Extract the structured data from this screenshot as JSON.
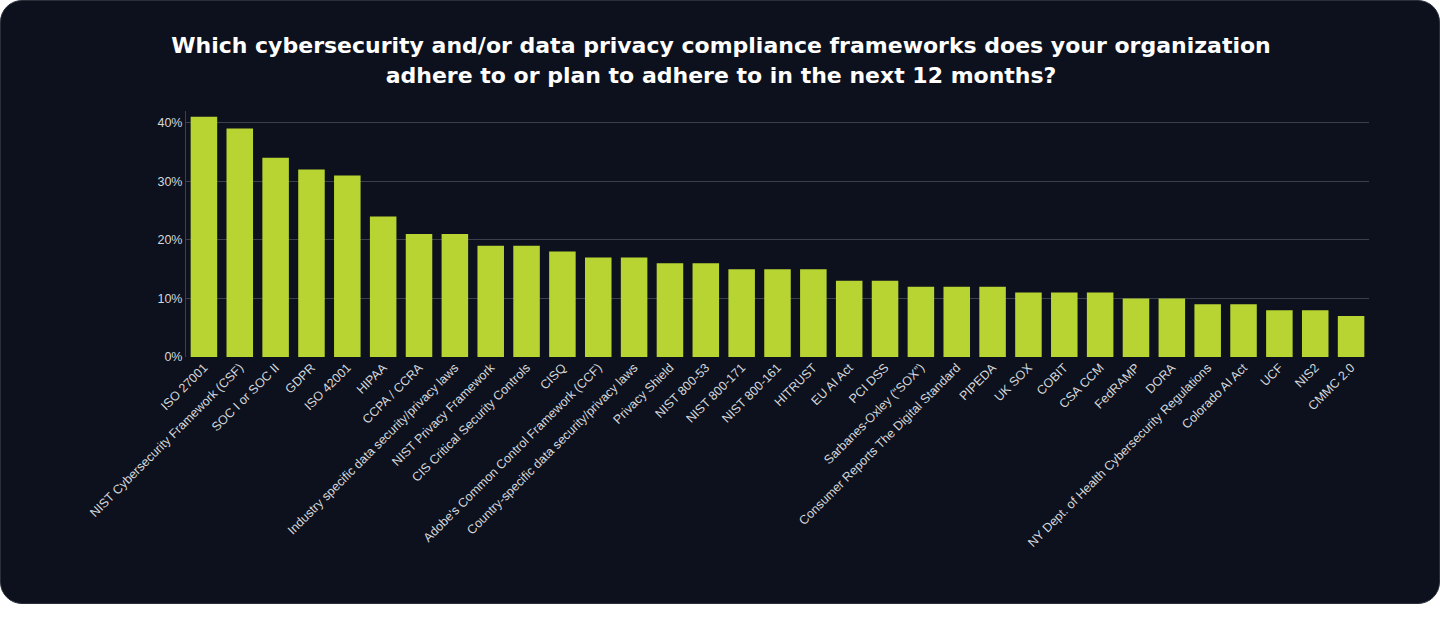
{
  "chart_data": {
    "type": "bar",
    "title": "Which cybersecurity and/or data privacy compliance frameworks does your organization adhere to or plan to adhere to in the next 12 months?",
    "categories": [
      "ISO 27001",
      "NIST Cybersecurity Framework (CSF)",
      "SOC I or SOC II",
      "GDPR",
      "ISO 42001",
      "HIPAA",
      "CCPA / CCRA",
      "Industry specific data security/privacy laws",
      "NIST Privacy Framework",
      "CIS Critical Security Controls",
      "CISQ",
      "Adobe's Common Control Framework (CCF)",
      "Country-specific data security/privacy laws",
      "Privacy Shield",
      "NIST 800-53",
      "NIST 800-171",
      "NIST 800-161",
      "HITRUST",
      "EU AI Act",
      "PCI DSS",
      "Sarbanes-Oxley (“SOX”)",
      "Consumer Reports The Digital Standard",
      "PIPEDA",
      "UK SOX",
      "COBIT",
      "CSA CCM",
      "FedRAMP",
      "DORA",
      "NY Dept. of Health Cybersecurity Regulations",
      "Colorado AI Act",
      "UCF",
      "NIS2",
      "CMMC 2.0"
    ],
    "values": [
      41,
      39,
      34,
      32,
      31,
      24,
      21,
      21,
      19,
      19,
      18,
      17,
      17,
      16,
      16,
      15,
      15,
      15,
      13,
      13,
      12,
      12,
      12,
      11,
      11,
      11,
      10,
      10,
      9,
      9,
      8,
      8,
      7
    ],
    "color": "#b8d432",
    "ylim": [
      0,
      42
    ],
    "yticks": [
      {
        "value": 0,
        "label": "0%"
      },
      {
        "value": 10,
        "label": "10%"
      },
      {
        "value": 20,
        "label": "20%"
      },
      {
        "value": 30,
        "label": "30%"
      },
      {
        "value": 40,
        "label": "40%"
      }
    ],
    "grid": true,
    "data_labels": false
  }
}
